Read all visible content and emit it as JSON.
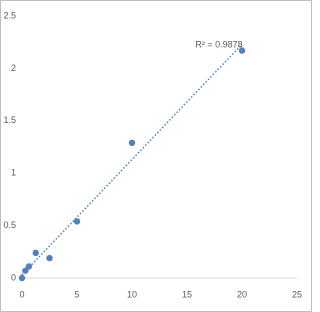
{
  "chart_data": {
    "type": "scatter",
    "x": [
      0,
      0.3125,
      0.625,
      1.25,
      2.5,
      5,
      10,
      20
    ],
    "series": [
      {
        "color": "#4f81bd",
        "values": [
          0.0,
          0.07,
          0.11,
          0.24,
          0.19,
          0.54,
          1.29,
          2.17
        ]
      }
    ],
    "xlim": [
      0,
      25
    ],
    "xticks": [
      0,
      5,
      10,
      15,
      20,
      25
    ],
    "ylim": [
      0,
      2.5
    ],
    "yticks": [
      0,
      0.5,
      1,
      1.5,
      2,
      2.5
    ],
    "grid": false,
    "trendline": "linear",
    "annotation": "R² = 0.9878"
  }
}
